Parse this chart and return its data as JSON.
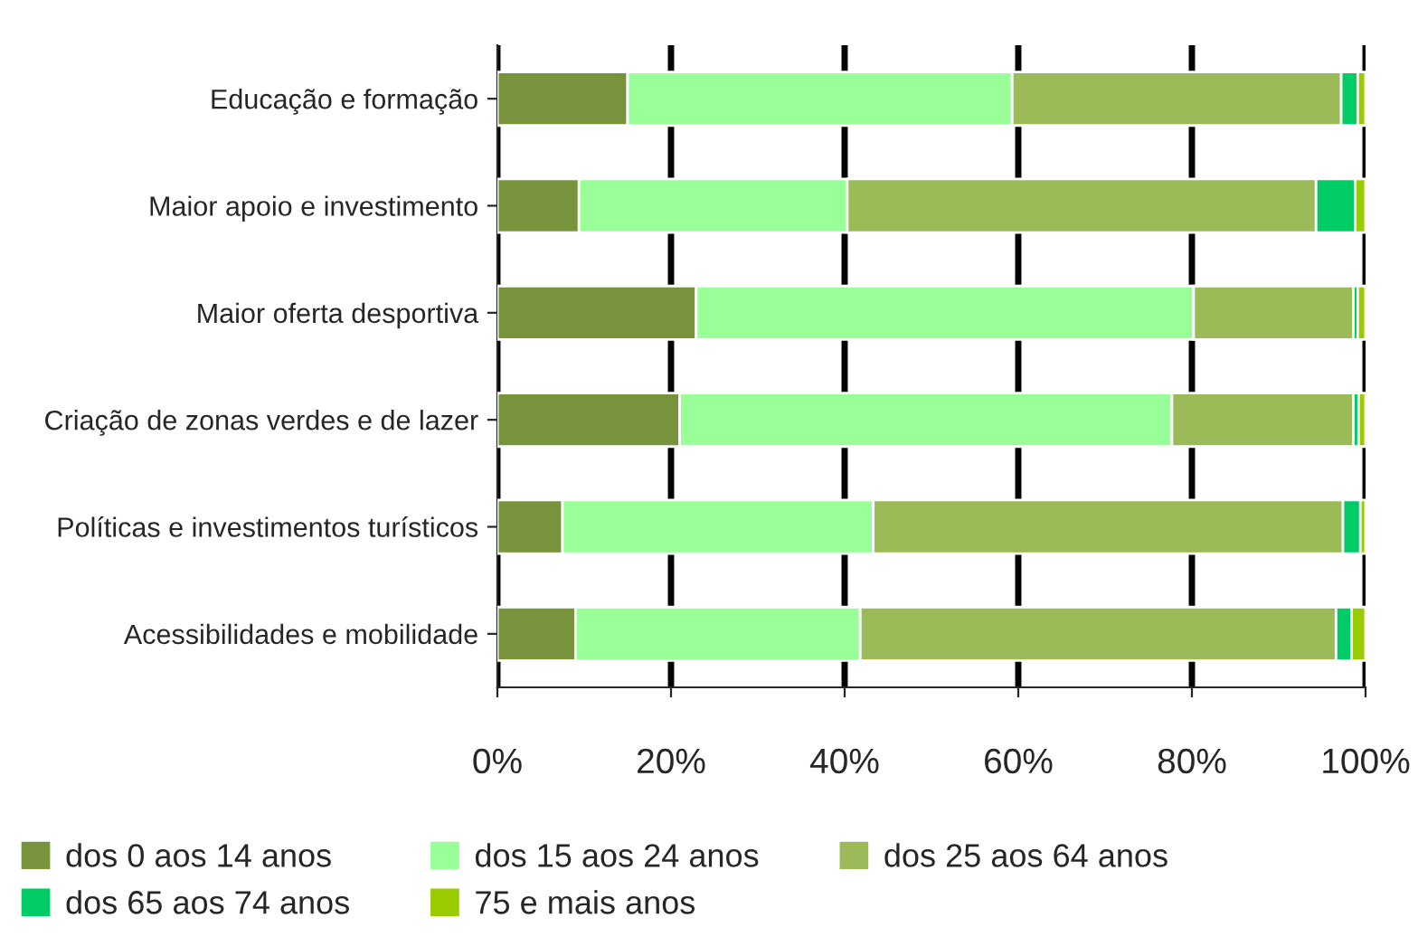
{
  "chart_data": {
    "type": "bar",
    "orientation": "horizontal",
    "stacked": true,
    "categories": [
      "Educação e formação",
      "Maior apoio e investimento",
      "Maior oferta desportiva",
      "Criação de zonas verdes e de lazer",
      "Políticas e investimentos turísticos",
      "Acessibilidades e mobilidade"
    ],
    "series": [
      {
        "name": "dos 0 aos 14 anos",
        "color": "#77933c",
        "values": [
          15.0,
          9.4,
          22.9,
          21.0,
          7.5,
          9.0
        ]
      },
      {
        "name": "dos 15 aos 24 anos",
        "color": "#99ff99",
        "values": [
          44.3,
          30.9,
          57.3,
          56.7,
          35.8,
          32.8
        ]
      },
      {
        "name": "dos 25 aos 64 anos",
        "color": "#9bbb59",
        "values": [
          37.9,
          54.0,
          18.4,
          20.9,
          54.1,
          54.8
        ]
      },
      {
        "name": "dos 65 aos 74 anos",
        "color": "#00cc66",
        "values": [
          1.9,
          4.5,
          0.5,
          0.6,
          2.0,
          1.8
        ]
      },
      {
        "name": "75 e mais anos",
        "color": "#99cc00",
        "values": [
          0.9,
          1.2,
          0.9,
          0.8,
          0.6,
          1.6
        ]
      }
    ],
    "xlim": [
      0,
      100
    ],
    "xticks": [
      {
        "value": 0,
        "label": "0%"
      },
      {
        "value": 20,
        "label": "20%"
      },
      {
        "value": 40,
        "label": "40%"
      },
      {
        "value": 60,
        "label": "60%"
      },
      {
        "value": 80,
        "label": "80%"
      },
      {
        "value": 100,
        "label": "100%"
      }
    ],
    "grid": "x",
    "legend": "bottom"
  }
}
